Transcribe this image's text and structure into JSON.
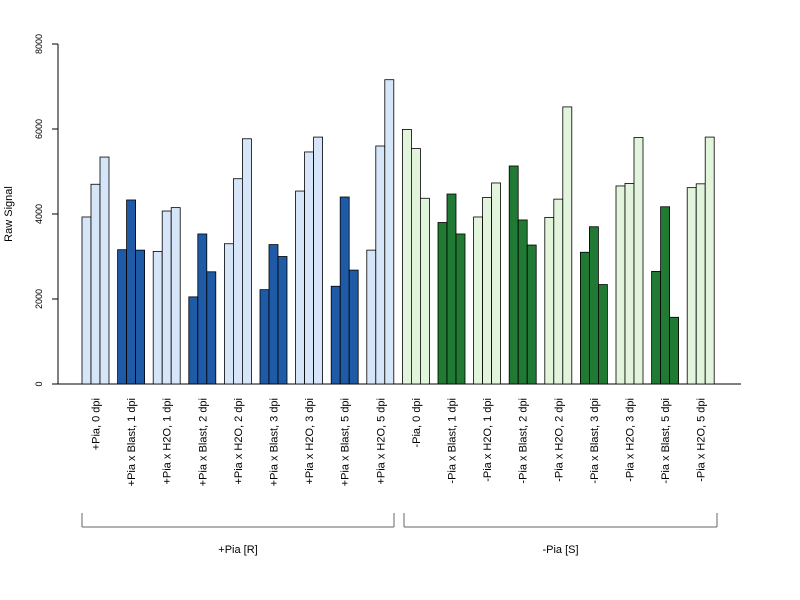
{
  "chart_data": {
    "type": "bar",
    "ylabel": "Raw Signal",
    "ylim": [
      0,
      8000
    ],
    "yticks": [
      0,
      2000,
      4000,
      6000,
      8000
    ],
    "grid": false,
    "legend": "none",
    "colors": {
      "pia_plus_light": "#d6e6f8",
      "pia_plus_dark": "#1f5aa6",
      "pia_minus_light": "#e2f5dc",
      "pia_minus_dark": "#217a33",
      "outline": "#000000",
      "axis": "#000000",
      "bracket": "#666666"
    },
    "categories": [
      {
        "label": "+Pia, 0 dpi",
        "shade": "pia_plus_light",
        "values": [
          3930,
          4700,
          5340
        ]
      },
      {
        "label": "+Pia x Blast, 1 dpi",
        "shade": "pia_plus_dark",
        "values": [
          3160,
          4330,
          3150
        ]
      },
      {
        "label": "+Pia x H2O, 1 dpi",
        "shade": "pia_plus_light",
        "values": [
          3120,
          4070,
          4150
        ]
      },
      {
        "label": "+Pia x Blast, 2 dpi",
        "shade": "pia_plus_dark",
        "values": [
          2050,
          3530,
          2640
        ]
      },
      {
        "label": "+Pia x H2O, 2 dpi",
        "shade": "pia_plus_light",
        "values": [
          3300,
          4830,
          5770
        ]
      },
      {
        "label": "+Pia x Blast, 3 dpi",
        "shade": "pia_plus_dark",
        "values": [
          2220,
          3280,
          3000
        ]
      },
      {
        "label": "+Pia x H2O, 3 dpi",
        "shade": "pia_plus_light",
        "values": [
          4540,
          5460,
          5810
        ]
      },
      {
        "label": "+Pia x Blast, 5 dpi",
        "shade": "pia_plus_dark",
        "values": [
          2300,
          4400,
          2680
        ]
      },
      {
        "label": "+Pia x H2O, 5 dpi",
        "shade": "pia_plus_light",
        "values": [
          3150,
          5600,
          7160
        ]
      },
      {
        "label": "-Pia, 0 dpi",
        "shade": "pia_minus_light",
        "values": [
          5990,
          5540,
          4370
        ]
      },
      {
        "label": "-Pia x Blast, 1 dpi",
        "shade": "pia_minus_dark",
        "values": [
          3800,
          4470,
          3530
        ]
      },
      {
        "label": "-Pia x H2O, 1 dpi",
        "shade": "pia_minus_light",
        "values": [
          3930,
          4390,
          4730
        ]
      },
      {
        "label": "-Pia x Blast, 2 dpi",
        "shade": "pia_minus_dark",
        "values": [
          5130,
          3860,
          3270
        ]
      },
      {
        "label": "-Pia x H2O, 2 dpi",
        "shade": "pia_minus_light",
        "values": [
          3920,
          4350,
          6520
        ]
      },
      {
        "label": "-Pia x Blast, 3 dpi",
        "shade": "pia_minus_dark",
        "values": [
          3100,
          3700,
          2340
        ]
      },
      {
        "label": "-Pia x H2O, 3 dpi",
        "shade": "pia_minus_light",
        "values": [
          4660,
          4720,
          5800
        ]
      },
      {
        "label": "-Pia x Blast, 5 dpi",
        "shade": "pia_minus_dark",
        "values": [
          2650,
          4170,
          1570
        ]
      },
      {
        "label": "-Pia x H2O, 5 dpi",
        "shade": "pia_minus_light",
        "values": [
          4620,
          4710,
          5810
        ]
      }
    ],
    "groups": [
      {
        "label": "+Pia [R]",
        "first_category": 0,
        "last_category": 8
      },
      {
        "label": "-Pia [S]",
        "first_category": 9,
        "last_category": 17
      }
    ]
  }
}
